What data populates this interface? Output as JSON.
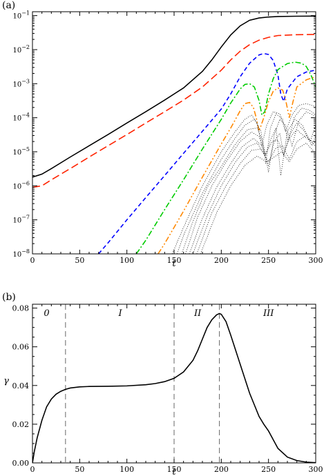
{
  "chart_data": [
    {
      "panel_label": "(a)",
      "type": "line",
      "xlabel": "t",
      "ylabel": "",
      "xlim": [
        0,
        300
      ],
      "ylim": [
        1e-08,
        0.13
      ],
      "yscale": "log",
      "xticks": [
        "0",
        "50",
        "100",
        "150",
        "200",
        "250",
        "300"
      ],
      "yticks": [
        "10^-8",
        "10^-7",
        "10^-6",
        "10^-5",
        "10^-4",
        "10^-3",
        "10^-2",
        "10^-1"
      ],
      "series": [
        {
          "style": "solid",
          "color": "#000000",
          "x": [
            0,
            10,
            20,
            40,
            60,
            80,
            100,
            120,
            140,
            160,
            180,
            190,
            200,
            210,
            220,
            230,
            240,
            250,
            260,
            280,
            300
          ],
          "y": [
            1.8e-06,
            2.2e-06,
            3.2e-06,
            7e-06,
            1.5e-05,
            3.2e-05,
            7e-05,
            0.00015,
            0.00033,
            0.00075,
            0.0023,
            0.005,
            0.012,
            0.027,
            0.05,
            0.073,
            0.085,
            0.091,
            0.094,
            0.096,
            0.097
          ]
        },
        {
          "style": "long-dash",
          "color": "#ff2200",
          "x": [
            0,
            10,
            20,
            40,
            60,
            80,
            100,
            120,
            140,
            160,
            180,
            200,
            210,
            220,
            230,
            240,
            250,
            260,
            280,
            300
          ],
          "y": [
            9e-07,
            1e-06,
            1.5e-06,
            3.2e-06,
            7e-06,
            1.5e-05,
            3.2e-05,
            7e-05,
            0.00015,
            0.00033,
            0.0008,
            0.0025,
            0.005,
            0.009,
            0.014,
            0.019,
            0.023,
            0.026,
            0.0275,
            0.028
          ]
        },
        {
          "style": "dash",
          "color": "#0000ff",
          "x": [
            70,
            80,
            100,
            120,
            140,
            160,
            180,
            200,
            210,
            220,
            230,
            240,
            245,
            250,
            255,
            260,
            263,
            266,
            270,
            280,
            290,
            300
          ],
          "y": [
            1e-08,
            2.1e-08,
            1e-07,
            4.5e-07,
            2e-06,
            9e-06,
            4e-05,
            0.00018,
            0.0005,
            0.0016,
            0.004,
            0.007,
            0.0077,
            0.0072,
            0.0048,
            0.0018,
            0.0005,
            0.0003,
            0.0007,
            0.0016,
            0.0022,
            0.0025
          ]
        },
        {
          "style": "dash-dot",
          "color": "#00cc00",
          "x": [
            110,
            120,
            140,
            160,
            180,
            200,
            210,
            220,
            225,
            230,
            235,
            240,
            243,
            246,
            250,
            255,
            260,
            270,
            278,
            285,
            290,
            295,
            300
          ],
          "y": [
            1e-08,
            2.5e-08,
            2e-07,
            1.5e-06,
            1.2e-05,
            9e-05,
            0.00027,
            0.0007,
            0.00095,
            0.001,
            0.0008,
            0.00032,
            0.00012,
            0.00015,
            0.0005,
            0.0014,
            0.0026,
            0.0039,
            0.0043,
            0.004,
            0.0032,
            0.0018,
            0.0008
          ]
        },
        {
          "style": "dash-dot-dot",
          "color": "#ff8800",
          "x": [
            133,
            140,
            160,
            180,
            200,
            210,
            220,
            225,
            230,
            234,
            237,
            240,
            245,
            250,
            255,
            260,
            265,
            268,
            272,
            276,
            280,
            290,
            300
          ],
          "y": [
            1e-08,
            2e-08,
            1.8e-07,
            1.8e-06,
            1.7e-05,
            5e-05,
            0.00016,
            0.00026,
            0.00028,
            0.0002,
            0.0001,
            4e-05,
            0.0001,
            0.0003,
            0.0006,
            0.00075,
            0.00065,
            0.00035,
            0.0001,
            0.0003,
            0.0008,
            0.0013,
            0.0016
          ]
        },
        {
          "style": "dotted",
          "color": "#000000",
          "x": [
            148,
            160,
            180,
            200,
            215,
            225,
            232,
            238,
            243,
            248,
            255,
            262,
            268,
            275,
            282,
            290,
            300
          ],
          "y": [
            1e-08,
            6e-08,
            1e-06,
            1e-05,
            4e-05,
            9e-05,
            0.00012,
            7e-05,
            1.5e-05,
            6e-05,
            0.00015,
            0.00013,
            4e-05,
            0.00012,
            0.00023,
            0.00026,
            0.00021
          ]
        },
        {
          "style": "dotted",
          "color": "#000000",
          "x": [
            153,
            160,
            180,
            200,
            215,
            225,
            235,
            242,
            247,
            252,
            258,
            265,
            271,
            277,
            285,
            293,
            300
          ],
          "y": [
            1e-08,
            3.5e-08,
            6e-07,
            6e-06,
            2.6e-05,
            6e-05,
            9e-05,
            4e-05,
            4.5e-06,
            5e-05,
            0.00013,
            9e-05,
            2e-05,
            0.0001,
            0.00019,
            0.00017,
            0.00012
          ]
        },
        {
          "style": "dotted",
          "color": "#000000",
          "x": [
            158,
            170,
            185,
            200,
            215,
            228,
            238,
            244,
            250,
            256,
            262,
            268,
            275,
            282,
            290,
            300
          ],
          "y": [
            1e-08,
            9e-08,
            9e-07,
            3.7e-06,
            1.7e-05,
            4.5e-05,
            5e-05,
            2e-05,
            2.5e-06,
            3e-05,
            9e-05,
            6e-05,
            1.5e-05,
            8e-05,
            0.00015,
            0.00011
          ]
        },
        {
          "style": "dotted",
          "color": "#000000",
          "x": [
            162,
            175,
            190,
            205,
            220,
            232,
            240,
            247,
            253,
            258,
            263,
            270,
            278,
            286,
            294,
            300
          ],
          "y": [
            1e-08,
            1.2e-07,
            1e-06,
            5e-06,
            2e-05,
            3.8e-05,
            2.8e-05,
            8e-06,
            2.5e-05,
            5e-05,
            2e-06,
            4e-05,
            9e-05,
            6e-05,
            2e-05,
            6e-05
          ]
        },
        {
          "style": "dotted",
          "color": "#000000",
          "x": [
            166,
            180,
            195,
            210,
            222,
            234,
            242,
            250,
            256,
            262,
            266,
            272,
            280,
            288,
            296,
            300
          ],
          "y": [
            1e-08,
            1.1e-07,
            9e-07,
            4.5e-06,
            1.4e-05,
            2.5e-05,
            1.6e-05,
            4e-06,
            2e-05,
            3.5e-05,
            8e-06,
            3e-05,
            7e-05,
            4e-05,
            1.5e-05,
            3e-05
          ]
        },
        {
          "style": "dotted",
          "color": "#000000",
          "x": [
            170,
            185,
            200,
            215,
            228,
            238,
            246,
            254,
            260,
            266,
            272,
            280,
            290,
            300
          ],
          "y": [
            1e-08,
            1.3e-07,
            1e-06,
            5e-06,
            1.4e-05,
            1.8e-05,
            8e-06,
            2e-05,
            2.2e-05,
            8e-06,
            2.5e-05,
            4.5e-05,
            2.5e-05,
            1.8e-05
          ]
        },
        {
          "style": "dotted",
          "color": "#000000",
          "x": [
            174,
            190,
            205,
            220,
            232,
            242,
            250,
            258,
            265,
            272,
            280,
            290,
            300
          ],
          "y": [
            1e-08,
            1.6e-07,
            1e-06,
            4.5e-06,
            1.1e-05,
            1.2e-05,
            5e-06,
            1.3e-05,
            1.5e-05,
            6e-06,
            2e-05,
            3e-05,
            1.4e-05
          ]
        },
        {
          "style": "dotted",
          "color": "#000000",
          "x": [
            178,
            195,
            210,
            225,
            238,
            248,
            256,
            264,
            272,
            280,
            290,
            300
          ],
          "y": [
            1e-08,
            1.6e-07,
            1e-06,
            4e-06,
            7.5e-06,
            5e-06,
            7e-06,
            1e-05,
            5e-06,
            1.2e-05,
            1.8e-05,
            9e-06
          ]
        }
      ]
    },
    {
      "panel_label": "(b)",
      "type": "line",
      "xlabel": "t",
      "ylabel": "γ",
      "xlim": [
        0,
        300
      ],
      "ylim": [
        0,
        0.082
      ],
      "xticks": [
        "0",
        "50",
        "100",
        "150",
        "200",
        "250",
        "300"
      ],
      "yticks": [
        "0.00",
        "0.02",
        "0.04",
        "0.06",
        "0.08"
      ],
      "vlines": [
        35,
        150,
        198
      ],
      "regions": [
        {
          "label": "0",
          "x": 15
        },
        {
          "label": "I",
          "x": 93
        },
        {
          "label": "II",
          "x": 175
        },
        {
          "label": "III",
          "x": 250
        }
      ],
      "series": [
        {
          "style": "solid",
          "color": "#000000",
          "x": [
            0,
            2,
            5,
            10,
            15,
            20,
            25,
            30,
            35,
            40,
            50,
            60,
            80,
            100,
            120,
            130,
            140,
            150,
            160,
            170,
            175,
            180,
            185,
            190,
            195,
            198,
            200,
            205,
            210,
            220,
            230,
            240,
            245,
            250,
            255,
            260,
            270,
            280,
            290,
            300
          ],
          "y": [
            0,
            0.006,
            0.013,
            0.022,
            0.029,
            0.033,
            0.0355,
            0.037,
            0.038,
            0.0387,
            0.0393,
            0.0395,
            0.0396,
            0.0398,
            0.0404,
            0.041,
            0.042,
            0.0437,
            0.047,
            0.053,
            0.058,
            0.064,
            0.07,
            0.074,
            0.0765,
            0.0772,
            0.0768,
            0.073,
            0.066,
            0.051,
            0.036,
            0.024,
            0.02,
            0.0165,
            0.012,
            0.0075,
            0.003,
            0.0012,
            0.0004,
            0.0001
          ]
        }
      ]
    }
  ]
}
